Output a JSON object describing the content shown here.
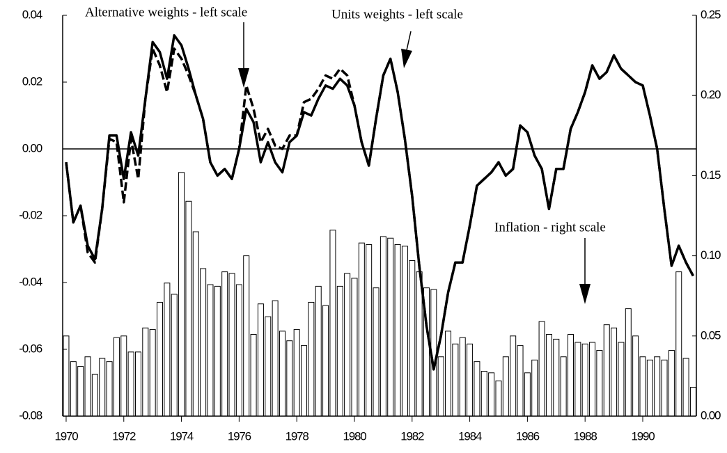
{
  "chart_data": {
    "type": "bar-line",
    "annotations": [
      "Alternative weights - left scale",
      "Units weights - left scale",
      "Inflation - right scale"
    ],
    "x": [
      1970,
      1970.25,
      1970.5,
      1970.75,
      1971,
      1971.25,
      1971.5,
      1971.75,
      1972,
      1972.25,
      1972.5,
      1972.75,
      1973,
      1973.25,
      1973.5,
      1973.75,
      1974,
      1974.25,
      1974.5,
      1974.75,
      1975,
      1975.25,
      1975.5,
      1975.75,
      1976,
      1976.25,
      1976.5,
      1976.75,
      1977,
      1977.25,
      1977.5,
      1977.75,
      1978,
      1978.25,
      1978.5,
      1978.75,
      1979,
      1979.25,
      1979.5,
      1979.75,
      1980,
      1980.25,
      1980.5,
      1980.75,
      1981,
      1981.25,
      1981.5,
      1981.75,
      1982,
      1982.25,
      1982.5,
      1982.75,
      1983,
      1983.25,
      1983.5,
      1983.75,
      1984,
      1984.25,
      1984.5,
      1984.75,
      1985,
      1985.25,
      1985.5,
      1985.75,
      1986,
      1986.25,
      1986.5,
      1986.75,
      1987,
      1987.25,
      1987.5,
      1987.75,
      1988,
      1988.25,
      1988.5,
      1988.75,
      1989,
      1989.25,
      1989.5,
      1989.75,
      1990,
      1990.25,
      1990.5,
      1990.75,
      1991,
      1991.25,
      1991.5,
      1991.75
    ],
    "series": [
      {
        "type": "line",
        "style": "solid",
        "color": "#000000",
        "axis": "y",
        "values": [
          -0.004,
          -0.022,
          -0.017,
          -0.029,
          -0.033,
          -0.018,
          0.004,
          0.004,
          -0.009,
          0.005,
          -0.002,
          0.015,
          0.032,
          0.029,
          0.021,
          0.034,
          0.031,
          0.024,
          0.016,
          0.009,
          -0.004,
          -0.008,
          -0.006,
          -0.009,
          0,
          0.012,
          0.008,
          -0.004,
          0.002,
          -0.004,
          -0.007,
          0.002,
          0.004,
          0.011,
          0.01,
          0.015,
          0.019,
          0.018,
          0.021,
          0.019,
          0.013,
          0.002,
          -0.005,
          0.009,
          0.022,
          0.027,
          0.017,
          0.003,
          -0.014,
          -0.035,
          -0.053,
          -0.066,
          -0.056,
          -0.043,
          -0.034,
          -0.034,
          -0.023,
          -0.011,
          -0.009,
          -0.007,
          -0.004,
          -0.008,
          -0.006,
          0.007,
          0.005,
          -0.002,
          -0.006,
          -0.018,
          -0.006,
          -0.006,
          0.006,
          0.011,
          0.017,
          0.025,
          0.021,
          0.023,
          0.028,
          0.024,
          0.022,
          0.02,
          0.019,
          0.01,
          0,
          -0.018,
          -0.035,
          -0.029,
          -0.034,
          -0.038
        ]
      },
      {
        "type": "line",
        "style": "dashed",
        "color": "#000000",
        "axis": "y",
        "values": [
          -0.004,
          -0.022,
          -0.017,
          -0.031,
          -0.034,
          -0.018,
          0.003,
          0.002,
          -0.016,
          0.003,
          -0.009,
          0.015,
          0.03,
          0.025,
          0.017,
          0.03,
          0.027,
          0.022,
          0.016,
          0.009,
          -0.004,
          -0.008,
          -0.006,
          -0.009,
          0,
          0.019,
          0.012,
          0.002,
          0.006,
          0.001,
          0,
          0.004,
          0.004,
          0.014,
          0.015,
          0.018,
          0.022,
          0.021,
          0.024,
          0.022,
          0.013,
          0.002,
          -0.005,
          0.009,
          0.022,
          0.027,
          0.017,
          0.003,
          -0.014,
          -0.035,
          -0.053,
          -0.066,
          -0.056,
          -0.043,
          -0.034,
          -0.034,
          -0.023,
          -0.011,
          -0.009,
          -0.007,
          -0.004,
          -0.008,
          -0.006,
          0.007,
          0.005,
          -0.002,
          -0.006,
          -0.018,
          -0.006,
          -0.006,
          0.006,
          0.011,
          0.017,
          0.025,
          0.021,
          0.023,
          0.028,
          0.024,
          0.022,
          0.02,
          0.019,
          0.01,
          0,
          -0.018,
          -0.035,
          -0.029,
          -0.034,
          -0.038
        ]
      },
      {
        "type": "bar",
        "color": "#ffffff",
        "axis": "y2",
        "values": [
          0.05,
          0.034,
          0.031,
          0.037,
          0.026,
          0.036,
          0.034,
          0.049,
          0.05,
          0.04,
          0.04,
          0.055,
          0.054,
          0.071,
          0.083,
          0.076,
          0.152,
          0.134,
          0.115,
          0.092,
          0.082,
          0.081,
          0.09,
          0.089,
          0.082,
          0.1,
          0.051,
          0.07,
          0.062,
          0.072,
          0.053,
          0.047,
          0.054,
          0.044,
          0.071,
          0.081,
          0.069,
          0.116,
          0.081,
          0.089,
          0.086,
          0.108,
          0.107,
          0.08,
          0.112,
          0.111,
          0.107,
          0.106,
          0.097,
          0.09,
          0.08,
          0.079,
          0.037,
          0.053,
          0.045,
          0.049,
          0.045,
          0.034,
          0.028,
          0.027,
          0.022,
          0.037,
          0.05,
          0.044,
          0.027,
          0.035,
          0.059,
          0.051,
          0.048,
          0.037,
          0.051,
          0.046,
          0.045,
          0.046,
          0.041,
          0.057,
          0.055,
          0.046,
          0.067,
          0.05,
          0.037,
          0.035,
          0.037,
          0.035,
          0.041,
          0.09,
          0.036,
          0.018
        ]
      }
    ],
    "xlim": [
      1969.88,
      1991.86
    ],
    "xticks": [
      1970,
      1972,
      1974,
      1976,
      1978,
      1980,
      1982,
      1984,
      1986,
      1988,
      1990
    ],
    "ylim": [
      -0.08,
      0.04
    ],
    "yticks": [
      -0.08,
      -0.06,
      -0.04,
      -0.02,
      {
        "value": 0,
        "label": "0.00"
      },
      0.02,
      0.04
    ],
    "y2lim": [
      0,
      0.25
    ],
    "y2ticks": [
      {
        "value": 0,
        "label": "0.00"
      },
      0.05,
      {
        "value": 0.1,
        "label": "0.10"
      },
      0.15,
      {
        "value": 0.2,
        "label": "0.20"
      },
      0.25
    ],
    "zero_line": true
  }
}
